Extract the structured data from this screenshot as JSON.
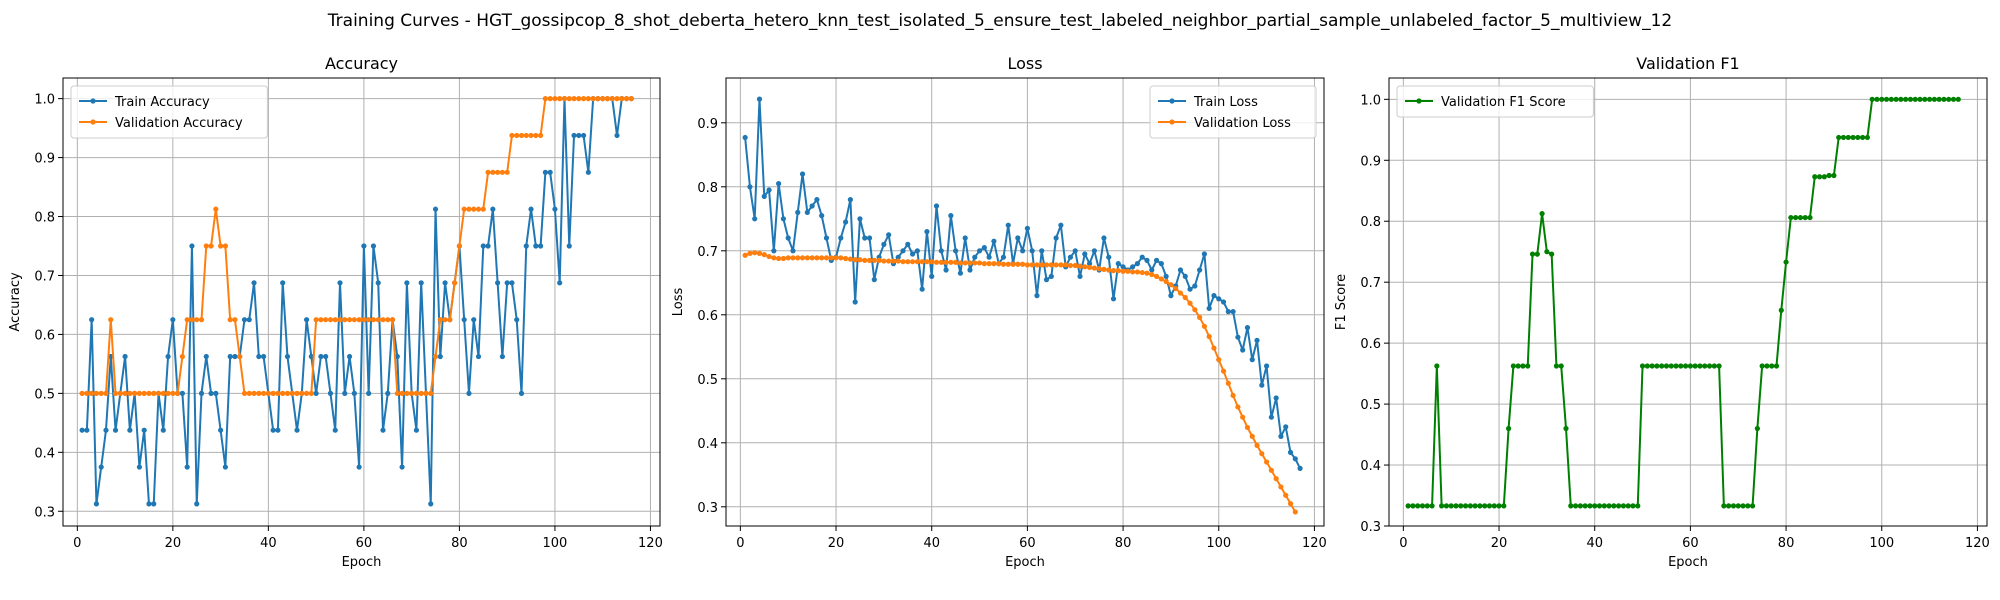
{
  "figure": {
    "title": "Training Curves - HGT_gossipcop_8_shot_deberta_hetero_knn_test_isolated_5_ensure_test_labeled_neighbor_partial_sample_unlabeled_factor_5_multiview_12"
  },
  "colors": {
    "train": "#1f77b4",
    "validation": "#ff7f0e",
    "f1": "#008000",
    "grid": "#b0b0b0"
  },
  "chart_data": [
    {
      "type": "line",
      "title": "Accuracy",
      "xlabel": "Epoch",
      "ylabel": "Accuracy",
      "xlim": [
        -3,
        122
      ],
      "ylim": [
        0.275,
        1.035
      ],
      "xticks": [
        0,
        20,
        40,
        60,
        80,
        100,
        120
      ],
      "yticks": [
        0.3,
        0.4,
        0.5,
        0.6,
        0.7,
        0.8,
        0.9,
        1.0
      ],
      "ytick_labels": [
        "0.3",
        "0.4",
        "0.5",
        "0.6",
        "0.7",
        "0.8",
        "0.9",
        "1.0"
      ],
      "grid": true,
      "legend_position": "upper-left",
      "series": [
        {
          "name": "Train Accuracy",
          "color": "#1f77b4",
          "values": [
            0.4375,
            0.4375,
            0.625,
            0.3125,
            0.375,
            0.4375,
            0.5625,
            0.4375,
            0.5,
            0.5625,
            0.4375,
            0.5,
            0.375,
            0.4375,
            0.3125,
            0.3125,
            0.5,
            0.4375,
            0.5625,
            0.625,
            0.5,
            0.5,
            0.375,
            0.75,
            0.3125,
            0.5,
            0.5625,
            0.5,
            0.5,
            0.4375,
            0.375,
            0.5625,
            0.5625,
            0.5625,
            0.625,
            0.625,
            0.6875,
            0.5625,
            0.5625,
            0.5,
            0.4375,
            0.4375,
            0.6875,
            0.5625,
            0.5,
            0.4375,
            0.5,
            0.625,
            0.5625,
            0.5,
            0.5625,
            0.5625,
            0.5,
            0.4375,
            0.6875,
            0.5,
            0.5625,
            0.5,
            0.375,
            0.75,
            0.5,
            0.75,
            0.6875,
            0.4375,
            0.5,
            0.625,
            0.5625,
            0.375,
            0.6875,
            0.5,
            0.4375,
            0.6875,
            0.5,
            0.3125,
            0.8125,
            0.5625,
            0.6875,
            0.625,
            0.6875,
            0.75,
            0.625,
            0.5,
            0.625,
            0.5625,
            0.75,
            0.75,
            0.8125,
            0.6875,
            0.5625,
            0.6875,
            0.6875,
            0.625,
            0.5,
            0.75,
            0.8125,
            0.75,
            0.75,
            0.875,
            0.875,
            0.8125,
            0.6875,
            1.0,
            0.75,
            0.9375,
            0.9375,
            0.9375,
            0.875,
            1.0,
            1.0,
            1.0,
            1.0,
            1.0,
            0.9375,
            1.0,
            1.0,
            1.0
          ]
        },
        {
          "name": "Validation Accuracy",
          "color": "#ff7f0e",
          "values": [
            0.5,
            0.5,
            0.5,
            0.5,
            0.5,
            0.5,
            0.625,
            0.5,
            0.5,
            0.5,
            0.5,
            0.5,
            0.5,
            0.5,
            0.5,
            0.5,
            0.5,
            0.5,
            0.5,
            0.5,
            0.5,
            0.5625,
            0.625,
            0.625,
            0.625,
            0.625,
            0.75,
            0.75,
            0.8125,
            0.75,
            0.75,
            0.625,
            0.625,
            0.5625,
            0.5,
            0.5,
            0.5,
            0.5,
            0.5,
            0.5,
            0.5,
            0.5,
            0.5,
            0.5,
            0.5,
            0.5,
            0.5,
            0.5,
            0.5,
            0.625,
            0.625,
            0.625,
            0.625,
            0.625,
            0.625,
            0.625,
            0.625,
            0.625,
            0.625,
            0.625,
            0.625,
            0.625,
            0.625,
            0.625,
            0.625,
            0.625,
            0.5,
            0.5,
            0.5,
            0.5,
            0.5,
            0.5,
            0.5,
            0.5,
            0.5625,
            0.625,
            0.625,
            0.625,
            0.6875,
            0.75,
            0.8125,
            0.8125,
            0.8125,
            0.8125,
            0.8125,
            0.875,
            0.875,
            0.875,
            0.875,
            0.875,
            0.9375,
            0.9375,
            0.9375,
            0.9375,
            0.9375,
            0.9375,
            0.9375,
            1.0,
            1.0,
            1.0,
            1.0,
            1.0,
            1.0,
            1.0,
            1.0,
            1.0,
            1.0,
            1.0,
            1.0,
            1.0,
            1.0,
            1.0,
            1.0,
            1.0,
            1.0,
            1.0
          ]
        }
      ]
    },
    {
      "type": "line",
      "title": "Loss",
      "xlabel": "Epoch",
      "ylabel": "Loss",
      "xlim": [
        -3,
        122
      ],
      "ylim": [
        0.27,
        0.97
      ],
      "xticks": [
        0,
        20,
        40,
        60,
        80,
        100,
        120
      ],
      "yticks": [
        0.3,
        0.4,
        0.5,
        0.6,
        0.7,
        0.8,
        0.9
      ],
      "ytick_labels": [
        "0.3",
        "0.4",
        "0.5",
        "0.6",
        "0.7",
        "0.8",
        "0.9"
      ],
      "grid": true,
      "legend_position": "upper-right",
      "series": [
        {
          "name": "Train Loss",
          "color": "#1f77b4",
          "values": [
            0.877,
            0.8,
            0.75,
            0.937,
            0.785,
            0.795,
            0.7,
            0.805,
            0.75,
            0.72,
            0.7,
            0.76,
            0.82,
            0.76,
            0.77,
            0.78,
            0.755,
            0.72,
            0.685,
            0.69,
            0.72,
            0.745,
            0.78,
            0.62,
            0.75,
            0.72,
            0.72,
            0.655,
            0.69,
            0.71,
            0.725,
            0.68,
            0.69,
            0.7,
            0.71,
            0.695,
            0.7,
            0.64,
            0.73,
            0.66,
            0.77,
            0.7,
            0.67,
            0.755,
            0.7,
            0.665,
            0.72,
            0.67,
            0.69,
            0.7,
            0.705,
            0.69,
            0.715,
            0.68,
            0.69,
            0.74,
            0.68,
            0.72,
            0.7,
            0.735,
            0.7,
            0.63,
            0.7,
            0.655,
            0.66,
            0.72,
            0.74,
            0.675,
            0.69,
            0.7,
            0.66,
            0.695,
            0.68,
            0.7,
            0.67,
            0.72,
            0.69,
            0.625,
            0.68,
            0.675,
            0.67,
            0.675,
            0.68,
            0.69,
            0.685,
            0.67,
            0.685,
            0.68,
            0.66,
            0.63,
            0.645,
            0.67,
            0.66,
            0.64,
            0.645,
            0.67,
            0.695,
            0.61,
            0.63,
            0.625,
            0.62,
            0.605,
            0.605,
            0.565,
            0.545,
            0.58,
            0.53,
            0.56,
            0.49,
            0.52,
            0.44,
            0.47,
            0.41,
            0.425,
            0.385,
            0.375,
            0.36
          ]
        },
        {
          "name": "Validation Loss",
          "color": "#ff7f0e",
          "values": [
            0.693,
            0.696,
            0.697,
            0.696,
            0.694,
            0.691,
            0.689,
            0.688,
            0.688,
            0.689,
            0.689,
            0.689,
            0.689,
            0.689,
            0.689,
            0.689,
            0.689,
            0.689,
            0.689,
            0.689,
            0.689,
            0.688,
            0.687,
            0.686,
            0.686,
            0.685,
            0.685,
            0.685,
            0.685,
            0.684,
            0.684,
            0.684,
            0.684,
            0.683,
            0.683,
            0.683,
            0.683,
            0.683,
            0.683,
            0.683,
            0.682,
            0.682,
            0.682,
            0.682,
            0.682,
            0.681,
            0.681,
            0.681,
            0.681,
            0.681,
            0.68,
            0.68,
            0.68,
            0.68,
            0.679,
            0.679,
            0.679,
            0.679,
            0.679,
            0.678,
            0.678,
            0.678,
            0.678,
            0.678,
            0.678,
            0.678,
            0.678,
            0.678,
            0.677,
            0.677,
            0.676,
            0.675,
            0.674,
            0.673,
            0.672,
            0.671,
            0.67,
            0.669,
            0.669,
            0.668,
            0.668,
            0.667,
            0.667,
            0.666,
            0.665,
            0.663,
            0.66,
            0.656,
            0.652,
            0.647,
            0.641,
            0.634,
            0.627,
            0.618,
            0.608,
            0.596,
            0.582,
            0.566,
            0.548,
            0.53,
            0.512,
            0.493,
            0.474,
            0.456,
            0.44,
            0.424,
            0.41,
            0.396,
            0.383,
            0.37,
            0.357,
            0.344,
            0.331,
            0.318,
            0.305,
            0.292
          ]
        }
      ]
    },
    {
      "type": "line",
      "title": "Validation F1",
      "xlabel": "Epoch",
      "ylabel": "F1 Score",
      "xlim": [
        -3,
        122
      ],
      "ylim": [
        0.3,
        1.035
      ],
      "xticks": [
        0,
        20,
        40,
        60,
        80,
        100,
        120
      ],
      "yticks": [
        0.3,
        0.4,
        0.5,
        0.6,
        0.7,
        0.8,
        0.9,
        1.0
      ],
      "ytick_labels": [
        "0.3",
        "0.4",
        "0.5",
        "0.6",
        "0.7",
        "0.8",
        "0.9",
        "1.0"
      ],
      "grid": true,
      "legend_position": "upper-left",
      "series": [
        {
          "name": "Validation F1 Score",
          "color": "#008000",
          "values": [
            0.333,
            0.333,
            0.333,
            0.333,
            0.333,
            0.333,
            0.5625,
            0.333,
            0.333,
            0.333,
            0.333,
            0.333,
            0.333,
            0.333,
            0.333,
            0.333,
            0.333,
            0.333,
            0.333,
            0.333,
            0.333,
            0.46,
            0.5625,
            0.5625,
            0.5625,
            0.5625,
            0.746,
            0.746,
            0.8125,
            0.75,
            0.746,
            0.5625,
            0.5625,
            0.46,
            0.333,
            0.333,
            0.333,
            0.333,
            0.333,
            0.333,
            0.333,
            0.333,
            0.333,
            0.333,
            0.333,
            0.333,
            0.333,
            0.333,
            0.333,
            0.5625,
            0.5625,
            0.5625,
            0.5625,
            0.5625,
            0.5625,
            0.5625,
            0.5625,
            0.5625,
            0.5625,
            0.5625,
            0.5625,
            0.5625,
            0.5625,
            0.5625,
            0.5625,
            0.5625,
            0.333,
            0.333,
            0.333,
            0.333,
            0.333,
            0.333,
            0.333,
            0.46,
            0.5625,
            0.5625,
            0.5625,
            0.5625,
            0.654,
            0.733,
            0.806,
            0.806,
            0.806,
            0.806,
            0.806,
            0.873,
            0.873,
            0.873,
            0.875,
            0.875,
            0.9375,
            0.9375,
            0.9375,
            0.9375,
            0.9375,
            0.9375,
            0.9375,
            1.0,
            1.0,
            1.0,
            1.0,
            1.0,
            1.0,
            1.0,
            1.0,
            1.0,
            1.0,
            1.0,
            1.0,
            1.0,
            1.0,
            1.0,
            1.0,
            1.0,
            1.0,
            1.0
          ]
        }
      ]
    }
  ]
}
